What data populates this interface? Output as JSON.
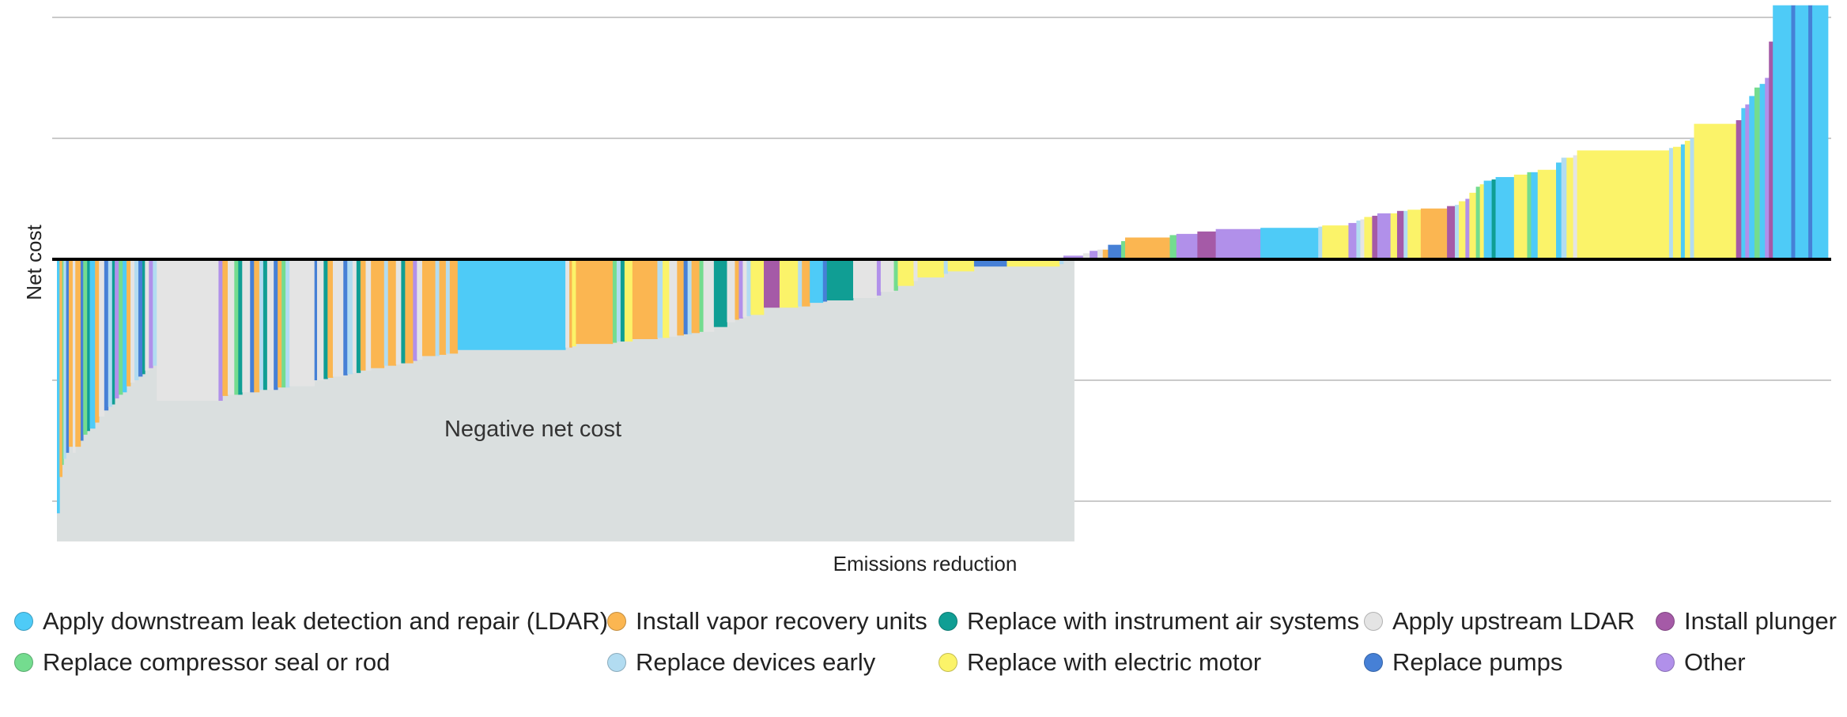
{
  "chart_data": {
    "type": "bar",
    "subtype": "marginal abatement cost curve (variable-width bars)",
    "title": "",
    "xlabel": "Emissions reduction",
    "ylabel": "Net cost",
    "annotation": "Negative net cost",
    "ylim": [
      -2.3,
      2.1
    ],
    "gridlines_at": [
      -2,
      -1,
      1,
      2
    ],
    "y_tick_labels_shown": false,
    "x_total_width_units": 1500,
    "colors": {
      "ldar_down": "#4ecbf7",
      "vru": "#fbb651",
      "air": "#109e94",
      "ldar_up": "#e4e4e4",
      "plunger": "#a55aa7",
      "comp": "#74dc8f",
      "devices": "#b2dcf1",
      "motor": "#fbf369",
      "pumps": "#4680d6",
      "other": "#b190ea"
    },
    "legend": [
      {
        "key": "ldar_down",
        "label": "Apply downstream leak detection and repair (LDAR)"
      },
      {
        "key": "vru",
        "label": "Install vapor recovery units"
      },
      {
        "key": "air",
        "label": "Replace with instrument air systems"
      },
      {
        "key": "ldar_up",
        "label": "Apply upstream LDAR"
      },
      {
        "key": "plunger",
        "label": "Install plunger"
      },
      {
        "key": "comp",
        "label": "Replace compressor seal or rod"
      },
      {
        "key": "devices",
        "label": "Replace devices early"
      },
      {
        "key": "motor",
        "label": "Replace with electric motor"
      },
      {
        "key": "pumps",
        "label": "Replace pumps"
      },
      {
        "key": "other",
        "label": "Other"
      }
    ],
    "series": [
      {
        "category": "ldar_down",
        "width": 2,
        "value": -2.1
      },
      {
        "category": "vru",
        "width": 2,
        "value": -1.8
      },
      {
        "category": "comp",
        "width": 1,
        "value": -1.7
      },
      {
        "category": "devices",
        "width": 2,
        "value": -1.65
      },
      {
        "category": "pumps",
        "width": 2,
        "value": -1.6
      },
      {
        "category": "vru",
        "width": 3,
        "value": -1.55
      },
      {
        "category": "ldar_up",
        "width": 2,
        "value": -1.6
      },
      {
        "category": "vru",
        "width": 4,
        "value": -1.55
      },
      {
        "category": "pumps",
        "width": 2,
        "value": -1.5
      },
      {
        "category": "comp",
        "width": 3,
        "value": -1.45
      },
      {
        "category": "air",
        "width": 2,
        "value": -1.42
      },
      {
        "category": "ldar_down",
        "width": 4,
        "value": -1.4
      },
      {
        "category": "vru",
        "width": 3,
        "value": -1.35
      },
      {
        "category": "ldar_up",
        "width": 4,
        "value": -1.3
      },
      {
        "category": "pumps",
        "width": 3,
        "value": -1.25
      },
      {
        "category": "devices",
        "width": 3,
        "value": -1.22
      },
      {
        "category": "air",
        "width": 2,
        "value": -1.2
      },
      {
        "category": "other",
        "width": 3,
        "value": -1.15
      },
      {
        "category": "comp",
        "width": 3,
        "value": -1.12
      },
      {
        "category": "ldar_down",
        "width": 3,
        "value": -1.1
      },
      {
        "category": "vru",
        "width": 3,
        "value": -1.05
      },
      {
        "category": "ldar_up",
        "width": 3,
        "value": -1.02
      },
      {
        "category": "devices",
        "width": 3,
        "value": -1.0
      },
      {
        "category": "pumps",
        "width": 3,
        "value": -0.97
      },
      {
        "category": "air",
        "width": 2,
        "value": -0.95
      },
      {
        "category": "ldar_up",
        "width": 3,
        "value": -0.92
      },
      {
        "category": "other",
        "width": 3,
        "value": -0.9
      },
      {
        "category": "devices",
        "width": 3,
        "value": -0.88
      },
      {
        "category": "ldar_up",
        "width": 47,
        "value": -1.17
      },
      {
        "category": "other",
        "width": 3,
        "value": -1.17
      },
      {
        "category": "vru",
        "width": 4,
        "value": -1.13
      },
      {
        "category": "ldar_up",
        "width": 5,
        "value": -1.12
      },
      {
        "category": "comp",
        "width": 3,
        "value": -1.12
      },
      {
        "category": "air",
        "width": 3,
        "value": -1.12
      },
      {
        "category": "ldar_up",
        "width": 6,
        "value": -1.1
      },
      {
        "category": "pumps",
        "width": 3,
        "value": -1.1
      },
      {
        "category": "vru",
        "width": 4,
        "value": -1.1
      },
      {
        "category": "devices",
        "width": 3,
        "value": -1.08
      },
      {
        "category": "air",
        "width": 3,
        "value": -1.08
      },
      {
        "category": "ldar_up",
        "width": 5,
        "value": -1.08
      },
      {
        "category": "pumps",
        "width": 3,
        "value": -1.08
      },
      {
        "category": "vru",
        "width": 3,
        "value": -1.06
      },
      {
        "category": "comp",
        "width": 3,
        "value": -1.06
      },
      {
        "category": "devices",
        "width": 3,
        "value": -1.06
      },
      {
        "category": "ldar_up",
        "width": 19,
        "value": -1.05
      },
      {
        "category": "pumps",
        "width": 2,
        "value": -1.0
      },
      {
        "category": "ldar_up",
        "width": 5,
        "value": -1.0
      },
      {
        "category": "air",
        "width": 3,
        "value": -0.99
      },
      {
        "category": "vru",
        "width": 4,
        "value": -0.98
      },
      {
        "category": "ldar_up",
        "width": 8,
        "value": -0.97
      },
      {
        "category": "pumps",
        "width": 3,
        "value": -0.96
      },
      {
        "category": "devices",
        "width": 4,
        "value": -0.95
      },
      {
        "category": "ldar_up",
        "width": 3,
        "value": -0.94
      },
      {
        "category": "air",
        "width": 3,
        "value": -0.94
      },
      {
        "category": "vru",
        "width": 4,
        "value": -0.92
      },
      {
        "category": "ldar_up",
        "width": 4,
        "value": -0.92
      },
      {
        "category": "vru",
        "width": 10,
        "value": -0.9
      },
      {
        "category": "devices",
        "width": 3,
        "value": -0.88
      },
      {
        "category": "vru",
        "width": 6,
        "value": -0.88
      },
      {
        "category": "ldar_up",
        "width": 4,
        "value": -0.87
      },
      {
        "category": "air",
        "width": 3,
        "value": -0.86
      },
      {
        "category": "vru",
        "width": 6,
        "value": -0.86
      },
      {
        "category": "other",
        "width": 3,
        "value": -0.84
      },
      {
        "category": "ldar_up",
        "width": 4,
        "value": -0.83
      },
      {
        "category": "vru",
        "width": 10,
        "value": -0.8
      },
      {
        "category": "devices",
        "width": 3,
        "value": -0.8
      },
      {
        "category": "vru",
        "width": 5,
        "value": -0.79
      },
      {
        "category": "devices",
        "width": 3,
        "value": -0.78
      },
      {
        "category": "vru",
        "width": 6,
        "value": -0.78
      },
      {
        "category": "ldar_down",
        "width": 82,
        "value": -0.75
      },
      {
        "category": "ldar_up",
        "width": 3,
        "value": -0.73
      },
      {
        "category": "vru",
        "width": 2,
        "value": -0.73
      },
      {
        "category": "motor",
        "width": 3,
        "value": -0.72
      },
      {
        "category": "vru",
        "width": 28,
        "value": -0.7
      },
      {
        "category": "comp",
        "width": 3,
        "value": -0.69
      },
      {
        "category": "devices",
        "width": 3,
        "value": -0.68
      },
      {
        "category": "air",
        "width": 3,
        "value": -0.68
      },
      {
        "category": "motor",
        "width": 6,
        "value": -0.68
      },
      {
        "category": "vru",
        "width": 19,
        "value": -0.66
      },
      {
        "category": "devices",
        "width": 4,
        "value": -0.65
      },
      {
        "category": "motor",
        "width": 5,
        "value": -0.65
      },
      {
        "category": "ldar_up",
        "width": 6,
        "value": -0.64
      },
      {
        "category": "vru",
        "width": 5,
        "value": -0.63
      },
      {
        "category": "pumps",
        "width": 3,
        "value": -0.62
      },
      {
        "category": "devices",
        "width": 3,
        "value": -0.62
      },
      {
        "category": "vru",
        "width": 6,
        "value": -0.61
      },
      {
        "category": "comp",
        "width": 3,
        "value": -0.6
      },
      {
        "category": "ldar_up",
        "width": 8,
        "value": -0.6
      },
      {
        "category": "air",
        "width": 10,
        "value": -0.56
      },
      {
        "category": "ldar_up",
        "width": 6,
        "value": -0.52
      },
      {
        "category": "vru",
        "width": 3,
        "value": -0.5
      },
      {
        "category": "other",
        "width": 3,
        "value": -0.49
      },
      {
        "category": "ldar_up",
        "width": 3,
        "value": -0.48
      },
      {
        "category": "devices",
        "width": 3,
        "value": -0.47
      },
      {
        "category": "motor",
        "width": 10,
        "value": -0.46
      },
      {
        "category": "plunger",
        "width": 12,
        "value": -0.4
      },
      {
        "category": "motor",
        "width": 14,
        "value": -0.4
      },
      {
        "category": "devices",
        "width": 3,
        "value": -0.39
      },
      {
        "category": "vru",
        "width": 6,
        "value": -0.39
      },
      {
        "category": "ldar_down",
        "width": 10,
        "value": -0.36
      },
      {
        "category": "pumps",
        "width": 3,
        "value": -0.35
      },
      {
        "category": "air",
        "width": 20,
        "value": -0.34
      },
      {
        "category": "ldar_up",
        "width": 18,
        "value": -0.32
      },
      {
        "category": "other",
        "width": 3,
        "value": -0.3
      },
      {
        "category": "ldar_up",
        "width": 10,
        "value": -0.27
      },
      {
        "category": "comp",
        "width": 3,
        "value": -0.26
      },
      {
        "category": "motor",
        "width": 12,
        "value": -0.22
      },
      {
        "category": "ldar_up",
        "width": 3,
        "value": -0.18
      },
      {
        "category": "motor",
        "width": 20,
        "value": -0.15
      },
      {
        "category": "devices",
        "width": 3,
        "value": -0.12
      },
      {
        "category": "motor",
        "width": 20,
        "value": -0.1
      },
      {
        "category": "pumps",
        "width": 25,
        "value": -0.06
      },
      {
        "category": "motor",
        "width": 40,
        "value": -0.06
      },
      {
        "category": "devices",
        "width": 3,
        "value": -0.04
      },
      {
        "category": "other",
        "width": 15,
        "value": 0.03
      },
      {
        "category": "ldar_up",
        "width": 5,
        "value": 0.05
      },
      {
        "category": "other",
        "width": 6,
        "value": 0.07
      },
      {
        "category": "ldar_up",
        "width": 4,
        "value": 0.08
      },
      {
        "category": "vru",
        "width": 4,
        "value": 0.08
      },
      {
        "category": "pumps",
        "width": 10,
        "value": 0.12
      },
      {
        "category": "comp",
        "width": 3,
        "value": 0.15
      },
      {
        "category": "vru",
        "width": 34,
        "value": 0.18
      },
      {
        "category": "comp",
        "width": 5,
        "value": 0.2
      },
      {
        "category": "other",
        "width": 16,
        "value": 0.21
      },
      {
        "category": "plunger",
        "width": 14,
        "value": 0.23
      },
      {
        "category": "other",
        "width": 34,
        "value": 0.25
      },
      {
        "category": "ldar_down",
        "width": 44,
        "value": 0.26
      },
      {
        "category": "devices",
        "width": 3,
        "value": 0.27
      },
      {
        "category": "motor",
        "width": 20,
        "value": 0.28
      },
      {
        "category": "other",
        "width": 6,
        "value": 0.3
      },
      {
        "category": "devices",
        "width": 3,
        "value": 0.32
      },
      {
        "category": "ldar_up",
        "width": 3,
        "value": 0.33
      },
      {
        "category": "motor",
        "width": 6,
        "value": 0.35
      },
      {
        "category": "plunger",
        "width": 4,
        "value": 0.36
      },
      {
        "category": "other",
        "width": 10,
        "value": 0.38
      },
      {
        "category": "motor",
        "width": 5,
        "value": 0.38
      },
      {
        "category": "plunger",
        "width": 5,
        "value": 0.4
      },
      {
        "category": "devices",
        "width": 3,
        "value": 0.4
      },
      {
        "category": "motor",
        "width": 10,
        "value": 0.41
      },
      {
        "category": "vru",
        "width": 20,
        "value": 0.42
      },
      {
        "category": "plunger",
        "width": 6,
        "value": 0.44
      },
      {
        "category": "devices",
        "width": 3,
        "value": 0.45
      },
      {
        "category": "motor",
        "width": 5,
        "value": 0.48
      },
      {
        "category": "other",
        "width": 3,
        "value": 0.5
      },
      {
        "category": "motor",
        "width": 5,
        "value": 0.55
      },
      {
        "category": "comp",
        "width": 3,
        "value": 0.6
      },
      {
        "category": "motor",
        "width": 3,
        "value": 0.62
      },
      {
        "category": "ldar_down",
        "width": 6,
        "value": 0.65
      },
      {
        "category": "air",
        "width": 3,
        "value": 0.66
      },
      {
        "category": "ldar_down",
        "width": 14,
        "value": 0.68
      },
      {
        "category": "motor",
        "width": 10,
        "value": 0.7
      },
      {
        "category": "comp",
        "width": 3,
        "value": 0.72
      },
      {
        "category": "ldar_down",
        "width": 5,
        "value": 0.72
      },
      {
        "category": "motor",
        "width": 14,
        "value": 0.74
      },
      {
        "category": "ldar_down",
        "width": 4,
        "value": 0.8
      },
      {
        "category": "devices",
        "width": 4,
        "value": 0.84
      },
      {
        "category": "motor",
        "width": 5,
        "value": 0.84
      },
      {
        "category": "ldar_up",
        "width": 3,
        "value": 0.86
      },
      {
        "category": "motor",
        "width": 70,
        "value": 0.9
      },
      {
        "category": "devices",
        "width": 3,
        "value": 0.92
      },
      {
        "category": "motor",
        "width": 6,
        "value": 0.93
      },
      {
        "category": "ldar_down",
        "width": 3,
        "value": 0.95
      },
      {
        "category": "motor",
        "width": 4,
        "value": 0.98
      },
      {
        "category": "devices",
        "width": 3,
        "value": 1.0
      },
      {
        "category": "motor",
        "width": 32,
        "value": 1.12
      },
      {
        "category": "plunger",
        "width": 4,
        "value": 1.15
      },
      {
        "category": "ldar_down",
        "width": 3,
        "value": 1.25
      },
      {
        "category": "other",
        "width": 3,
        "value": 1.28
      },
      {
        "category": "ldar_down",
        "width": 4,
        "value": 1.35
      },
      {
        "category": "comp",
        "width": 4,
        "value": 1.42
      },
      {
        "category": "ldar_down",
        "width": 4,
        "value": 1.45
      },
      {
        "category": "other",
        "width": 3,
        "value": 1.5
      },
      {
        "category": "plunger",
        "width": 3,
        "value": 1.8
      },
      {
        "category": "ldar_down",
        "width": 14,
        "value": 2.1
      },
      {
        "category": "pumps",
        "width": 3,
        "value": 2.1
      },
      {
        "category": "ldar_down",
        "width": 10,
        "value": 2.1
      },
      {
        "category": "pumps",
        "width": 3,
        "value": 2.1
      },
      {
        "category": "ldar_down",
        "width": 12,
        "value": 2.1
      }
    ]
  }
}
